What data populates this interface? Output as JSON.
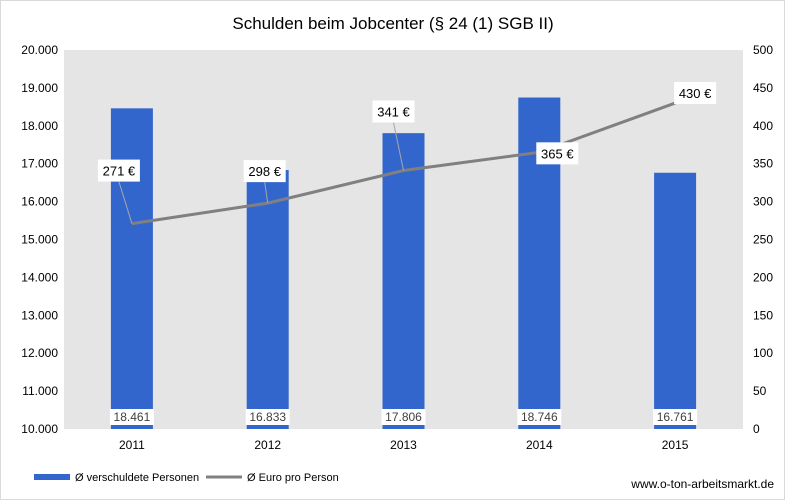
{
  "chart_data": {
    "type": "bar",
    "title": "Schulden beim Jobcenter (§ 24 (1) SGB II)",
    "categories": [
      "2011",
      "2012",
      "2013",
      "2014",
      "2015"
    ],
    "series": [
      {
        "name": "Ø verschuldete Personen",
        "type": "bar",
        "axis": "left",
        "color": "#3366cc",
        "values": [
          18461,
          16833,
          17806,
          18746,
          16761
        ],
        "labels": [
          "18.461",
          "16.833",
          "17.806",
          "18.746",
          "16.761"
        ]
      },
      {
        "name": "Ø Euro pro Person",
        "type": "line",
        "axis": "right",
        "color": "#808080",
        "values": [
          271,
          298,
          341,
          365,
          430
        ],
        "labels": [
          "271 €",
          "298 €",
          "341 €",
          "365 €",
          "430 €"
        ]
      }
    ],
    "y_left": {
      "ylim": [
        10000,
        20000
      ],
      "ticks": [
        10000,
        11000,
        12000,
        13000,
        14000,
        15000,
        16000,
        17000,
        18000,
        19000,
        20000
      ],
      "tick_labels": [
        "10.000",
        "11.000",
        "12.000",
        "13.000",
        "14.000",
        "15.000",
        "16.000",
        "17.000",
        "18.000",
        "19.000",
        "20.000"
      ]
    },
    "y_right": {
      "ylim": [
        0,
        500
      ],
      "ticks": [
        0,
        50,
        100,
        150,
        200,
        250,
        300,
        350,
        400,
        450,
        500
      ],
      "tick_labels": [
        "0",
        "50",
        "100",
        "150",
        "200",
        "250",
        "300",
        "350",
        "400",
        "450",
        "500"
      ]
    },
    "plot_background": "#e5e5e5",
    "grid": false,
    "legend_position": "bottom-left"
  },
  "footer": {
    "source": "www.o-ton-arbeitsmarkt.de"
  }
}
